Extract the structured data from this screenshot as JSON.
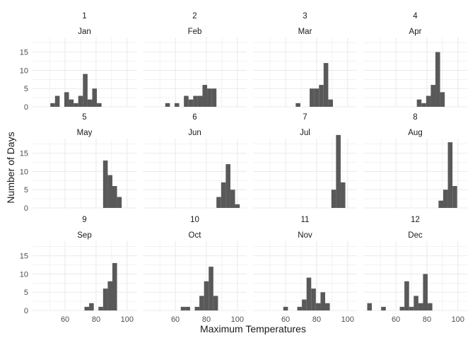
{
  "chart_data": {
    "type": "bar",
    "chart_kind": "faceted histogram",
    "xlabel": "Maximum Temperatures",
    "ylabel": "Number of Days",
    "xlim": [
      39,
      106
    ],
    "ylim": [
      0,
      19
    ],
    "xticks": [
      60,
      80,
      100
    ],
    "yticks": [
      0,
      5,
      10,
      15
    ],
    "bin_width": 3,
    "grid": true,
    "bar_color": "#595959",
    "grid_color": "#ebebeb",
    "text_color": "#4d4d4d",
    "title_color": "#1a1a1a",
    "facets": [
      {
        "number": "1",
        "month": "Jan",
        "bins": [
          [
            52,
            1
          ],
          [
            55,
            3
          ],
          [
            58,
            0
          ],
          [
            61,
            4
          ],
          [
            64,
            2
          ],
          [
            67,
            1
          ],
          [
            70,
            3
          ],
          [
            73,
            9
          ],
          [
            76,
            2
          ],
          [
            79,
            5
          ],
          [
            82,
            1
          ]
        ]
      },
      {
        "number": "2",
        "month": "Feb",
        "bins": [
          [
            55,
            1
          ],
          [
            58,
            0
          ],
          [
            61,
            1
          ],
          [
            64,
            0
          ],
          [
            67,
            3
          ],
          [
            70,
            2
          ],
          [
            73,
            3
          ],
          [
            76,
            3
          ],
          [
            79,
            6
          ],
          [
            82,
            5
          ],
          [
            85,
            5
          ]
        ]
      },
      {
        "number": "3",
        "month": "Mar",
        "bins": [
          [
            68,
            1
          ],
          [
            71,
            0
          ],
          [
            74,
            0
          ],
          [
            77,
            5
          ],
          [
            80,
            5
          ],
          [
            83,
            6
          ],
          [
            86,
            12
          ],
          [
            89,
            2
          ]
        ]
      },
      {
        "number": "4",
        "month": "Apr",
        "bins": [
          [
            75,
            2
          ],
          [
            78,
            1
          ],
          [
            81,
            3
          ],
          [
            84,
            6
          ],
          [
            87,
            15
          ],
          [
            90,
            4
          ]
        ]
      },
      {
        "number": "5",
        "month": "May",
        "bins": [
          [
            86,
            13
          ],
          [
            89,
            9
          ],
          [
            92,
            6
          ],
          [
            95,
            3
          ]
        ]
      },
      {
        "number": "6",
        "month": "Jun",
        "bins": [
          [
            88,
            3
          ],
          [
            91,
            7
          ],
          [
            94,
            12
          ],
          [
            97,
            5
          ],
          [
            100,
            1
          ]
        ]
      },
      {
        "number": "7",
        "month": "Jul",
        "bins": [
          [
            91,
            5
          ],
          [
            94,
            20
          ],
          [
            97,
            7
          ]
        ]
      },
      {
        "number": "8",
        "month": "Aug",
        "bins": [
          [
            89,
            2
          ],
          [
            92,
            5
          ],
          [
            95,
            18
          ],
          [
            98,
            6
          ]
        ]
      },
      {
        "number": "9",
        "month": "Sep",
        "bins": [
          [
            74,
            1
          ],
          [
            77,
            2
          ],
          [
            80,
            0
          ],
          [
            83,
            1
          ],
          [
            86,
            6
          ],
          [
            89,
            8
          ],
          [
            92,
            13
          ]
        ]
      },
      {
        "number": "10",
        "month": "Oct",
        "bins": [
          [
            65,
            1
          ],
          [
            68,
            1
          ],
          [
            71,
            0
          ],
          [
            74,
            1
          ],
          [
            77,
            4
          ],
          [
            80,
            8
          ],
          [
            83,
            12
          ],
          [
            86,
            4
          ]
        ]
      },
      {
        "number": "11",
        "month": "Nov",
        "bins": [
          [
            60,
            1
          ],
          [
            63,
            0
          ],
          [
            66,
            0
          ],
          [
            69,
            1
          ],
          [
            72,
            3
          ],
          [
            75,
            9
          ],
          [
            78,
            6
          ],
          [
            81,
            2
          ],
          [
            84,
            5
          ],
          [
            87,
            2
          ]
        ]
      },
      {
        "number": "12",
        "month": "Dec",
        "bins": [
          [
            43,
            2
          ],
          [
            46,
            0
          ],
          [
            49,
            0
          ],
          [
            52,
            1
          ],
          [
            55,
            0
          ],
          [
            58,
            0
          ],
          [
            61,
            0
          ],
          [
            64,
            1
          ],
          [
            67,
            8
          ],
          [
            70,
            1
          ],
          [
            73,
            4
          ],
          [
            76,
            2
          ],
          [
            79,
            10
          ],
          [
            82,
            2
          ]
        ]
      }
    ]
  }
}
